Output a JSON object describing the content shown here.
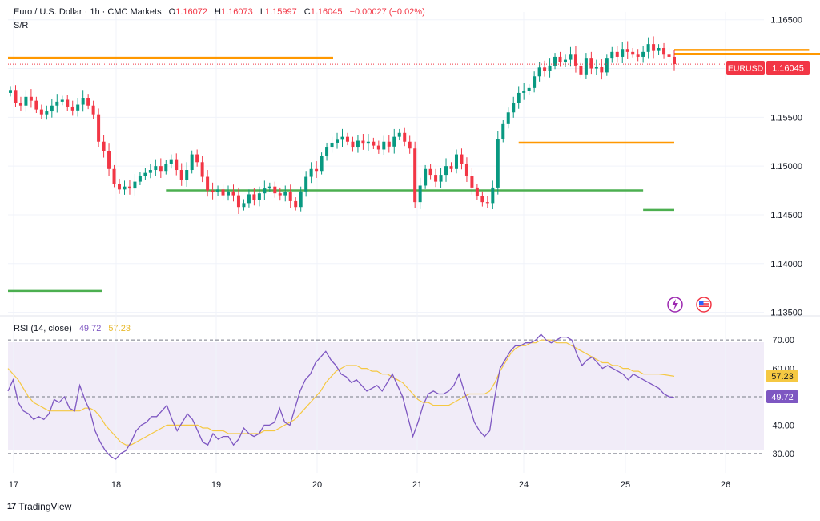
{
  "header": {
    "symbol_desc": "Euro / U.S. Dollar · 1h · CMC Markets",
    "open_label": "O",
    "open": "1.16072",
    "high_label": "H",
    "high": "1.16073",
    "low_label": "L",
    "low": "1.15997",
    "close_label": "C",
    "close": "1.16045",
    "change": "−0.00027 (−0.02%)",
    "indicator": "S/R"
  },
  "price_badge": {
    "symbol": "EURUSD",
    "price": "1.16045",
    "color": "#f23645"
  },
  "rsi_header": {
    "label": "RSI (14, close)",
    "rsi": "49.72",
    "ma": "57.23"
  },
  "rsi_badges": {
    "ma": "57.23",
    "rsi": "49.72"
  },
  "branding": {
    "name": "TradingView",
    "mark": "17"
  },
  "icons": {
    "lightning": "lightning-icon",
    "flag": "us-flag-icon"
  },
  "colors": {
    "up": "#089981",
    "down": "#f23645",
    "support": "#4caf50",
    "resistance": "#ff9800",
    "rsi": "#7e57c2",
    "rsi_ma": "#f5c842"
  },
  "chart_data": [
    {
      "type": "candlestick",
      "title": "Euro / U.S. Dollar · 1h · CMC Markets",
      "price_axis_ticks": [
        "1.16500",
        "1.16000",
        "1.15500",
        "1.15000",
        "1.14500",
        "1.14000",
        "1.13500"
      ],
      "ylim": [
        1.1348,
        1.1658
      ],
      "x_tick_labels": [
        "17",
        "18",
        "19",
        "20",
        "21",
        "24",
        "25",
        "26"
      ],
      "last_price": 1.16045,
      "sr_levels": [
        {
          "type": "resistance",
          "price": 1.1611
        },
        {
          "type": "support",
          "price": 1.1475
        },
        {
          "type": "support",
          "price": 1.1372
        },
        {
          "type": "resistance",
          "price": 1.1524
        },
        {
          "type": "support",
          "price": 1.1455
        },
        {
          "type": "resistance",
          "price": 1.1619
        },
        {
          "type": "resistance",
          "price": 1.1615
        }
      ],
      "closes": [
        1.1578,
        1.1565,
        1.1562,
        1.1571,
        1.1567,
        1.1558,
        1.1553,
        1.1556,
        1.1562,
        1.1566,
        1.1568,
        1.1561,
        1.1557,
        1.1563,
        1.157,
        1.1562,
        1.1553,
        1.1525,
        1.1515,
        1.1497,
        1.1482,
        1.1476,
        1.1479,
        1.1477,
        1.1484,
        1.149,
        1.1493,
        1.1496,
        1.15,
        1.1495,
        1.1502,
        1.1507,
        1.1496,
        1.1486,
        1.1496,
        1.1512,
        1.1504,
        1.1489,
        1.1475,
        1.1473,
        1.1476,
        1.147,
        1.1474,
        1.147,
        1.1458,
        1.1462,
        1.1471,
        1.1465,
        1.1472,
        1.1477,
        1.1479,
        1.1472,
        1.147,
        1.1473,
        1.1464,
        1.1458,
        1.1474,
        1.1489,
        1.1497,
        1.1495,
        1.151,
        1.1519,
        1.1524,
        1.1527,
        1.153,
        1.1525,
        1.1519,
        1.1526,
        1.1523,
        1.1525,
        1.1521,
        1.1517,
        1.1525,
        1.152,
        1.153,
        1.1534,
        1.1525,
        1.1518
      ],
      "closes_part2": [
        1.1463,
        1.148,
        1.1497,
        1.1491,
        1.1484,
        1.1491,
        1.15,
        1.1497,
        1.1512,
        1.1502,
        1.149,
        1.1478,
        1.1469,
        1.1463,
        1.1462,
        1.1478,
        1.1528,
        1.1543,
        1.1555,
        1.1565,
        1.1575,
        1.1577,
        1.158,
        1.1592,
        1.1601,
        1.1598,
        1.1603,
        1.1612,
        1.1607,
        1.1609,
        1.1615,
        1.1603,
        1.1594,
        1.1611,
        1.16,
        1.1602,
        1.1596,
        1.1611,
        1.1617,
        1.1612,
        1.162,
        1.1617,
        1.1615,
        1.1612,
        1.1617,
        1.1625,
        1.1618,
        1.1621,
        1.1615,
        1.1612,
        1.16045
      ]
    },
    {
      "type": "line",
      "title": "RSI (14, close)",
      "y_ticks": [
        "70.00",
        "60.00",
        "40.00",
        "30.00"
      ],
      "ylim": [
        26,
        74
      ],
      "band": [
        30,
        70
      ],
      "mid_line": 50,
      "series": [
        {
          "name": "RSI",
          "last": 49.72
        },
        {
          "name": "MA",
          "last": 57.23
        }
      ],
      "rsi_values": [
        52,
        56,
        48,
        45,
        44,
        42,
        43,
        42,
        44,
        49,
        48,
        50,
        46,
        45,
        54,
        49,
        45,
        38,
        34,
        31,
        29,
        28,
        30,
        31,
        34,
        38,
        40,
        41,
        43,
        43,
        45,
        47,
        42,
        38,
        41,
        44,
        42,
        38,
        34,
        33,
        37,
        35,
        36,
        36,
        33,
        35,
        39,
        37,
        36,
        37,
        40,
        40,
        41,
        46,
        41,
        40,
        46,
        52,
        56,
        58,
        62,
        64,
        66,
        63,
        61,
        58,
        57,
        55,
        56,
        54,
        52,
        53,
        54,
        52,
        55,
        58,
        54,
        50,
        43,
        36,
        41,
        47,
        51,
        52,
        51,
        51,
        52,
        54,
        58,
        52,
        47,
        41,
        38,
        36,
        38,
        50,
        60,
        63,
        66,
        68,
        68,
        69,
        69,
        70,
        72,
        70,
        69,
        70,
        71,
        71,
        70,
        65,
        61,
        63,
        64,
        62,
        60,
        61,
        60,
        59,
        58,
        56,
        58,
        57,
        56,
        55,
        54,
        53,
        51,
        50,
        49.72
      ],
      "ma_values": [
        60,
        58,
        56,
        53,
        50,
        48,
        47,
        46,
        45,
        45,
        45,
        45,
        45,
        45,
        45,
        46,
        46,
        45,
        43,
        40,
        38,
        36,
        34,
        33,
        33,
        34,
        35,
        36,
        37,
        38,
        39,
        40,
        40,
        40,
        40,
        40,
        40,
        40,
        39,
        39,
        38,
        38,
        38,
        37,
        37,
        37,
        37,
        37,
        37,
        37,
        38,
        38,
        38,
        39,
        40,
        41,
        42,
        44,
        46,
        48,
        50,
        52,
        55,
        57,
        59,
        60,
        61,
        61,
        61,
        60,
        60,
        59,
        59,
        58,
        58,
        57,
        56,
        55,
        53,
        51,
        49,
        48,
        48,
        47,
        47,
        47,
        47,
        48,
        49,
        50,
        51,
        51,
        51,
        51,
        52,
        55,
        59,
        62,
        65,
        67,
        68,
        68,
        69,
        69,
        70,
        70,
        70,
        69,
        69,
        69,
        68,
        67,
        66,
        65,
        64,
        63,
        62,
        62,
        61,
        61,
        60,
        60,
        59,
        59,
        58,
        58,
        58,
        58,
        57.8,
        57.5,
        57.23
      ]
    }
  ]
}
